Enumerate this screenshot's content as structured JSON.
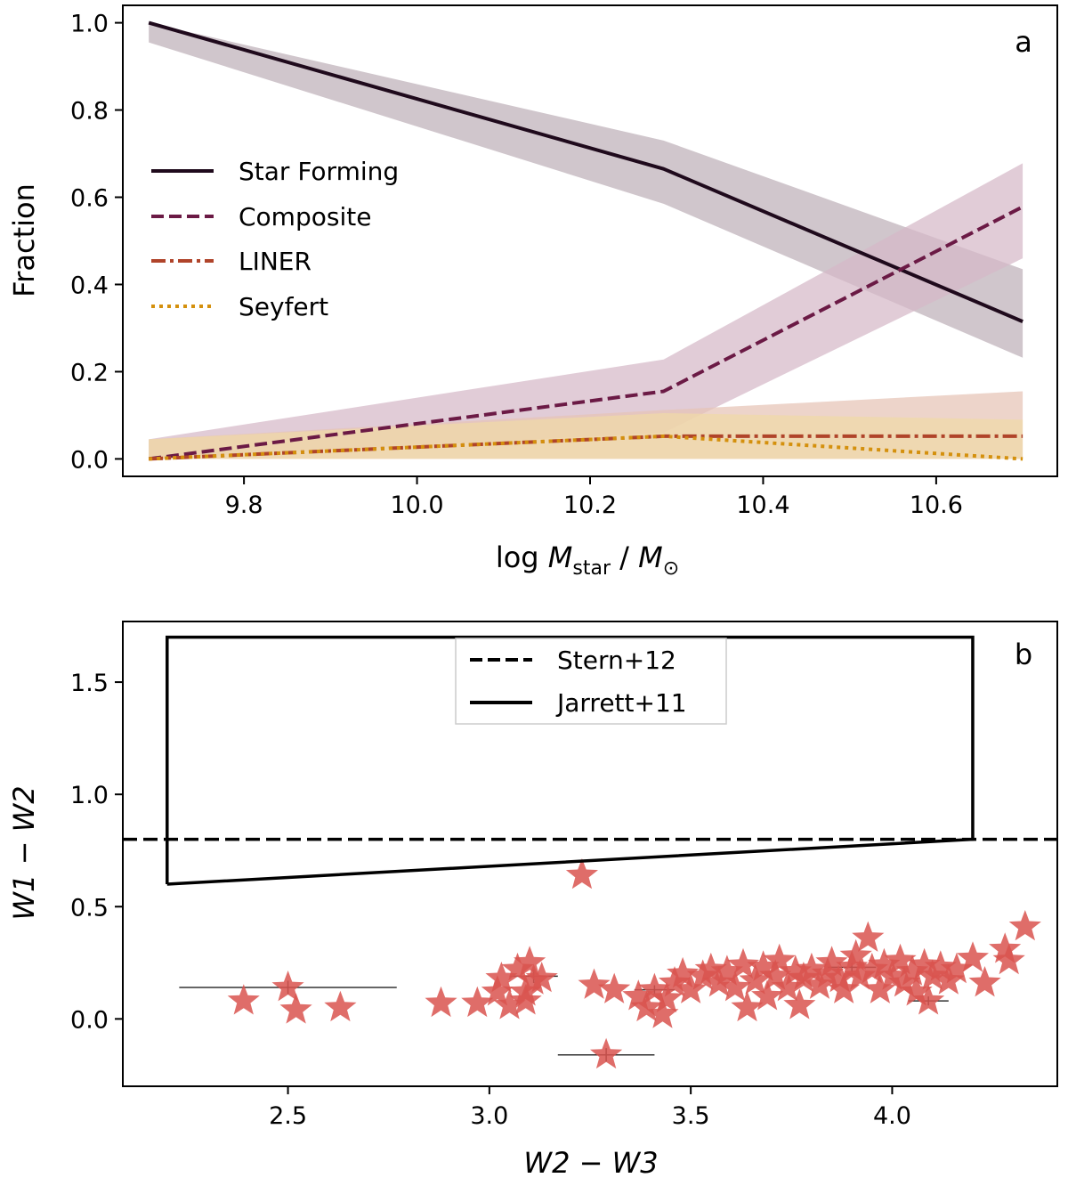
{
  "chart_data": [
    {
      "type": "line",
      "panel_letter": "a",
      "xlabel": "log M_star / M_⊙",
      "xlabel_parts": {
        "prefix": "log ",
        "M": "M",
        "sub": "star",
        "slash": " / ",
        "M2": "M",
        "sun": "⊙"
      },
      "ylabel": "Fraction",
      "xlim": [
        9.66,
        10.74
      ],
      "ylim": [
        -0.04,
        1.04
      ],
      "xticks": [
        9.8,
        10.0,
        10.2,
        10.4,
        10.6
      ],
      "xtick_labels": [
        "9.8",
        "10.0",
        "10.2",
        "10.4",
        "10.6"
      ],
      "yticks": [
        0.0,
        0.2,
        0.4,
        0.6,
        0.8,
        1.0
      ],
      "ytick_labels": [
        "0.0",
        "0.2",
        "0.4",
        "0.6",
        "0.8",
        "1.0"
      ],
      "legend_position": "center-left",
      "x": [
        9.69,
        10.285,
        10.7
      ],
      "series": [
        {
          "name": "Star Forming",
          "style": "solid",
          "color": "#1f0a1c",
          "band_color": "#beb0b9",
          "values": [
            1.0,
            0.665,
            0.315
          ],
          "lower": [
            0.955,
            0.585,
            0.232
          ],
          "upper": [
            1.0,
            0.73,
            0.435
          ]
        },
        {
          "name": "Composite",
          "style": "dashed",
          "color": "#6b1a45",
          "band_color": "#d6b8c8",
          "values": [
            0.0,
            0.155,
            0.578
          ],
          "lower": [
            0.0,
            0.06,
            0.46
          ],
          "upper": [
            0.045,
            0.228,
            0.678
          ]
        },
        {
          "name": "LINER",
          "style": "dashdot",
          "color": "#b0442a",
          "band_color": "#e6c3b6",
          "values": [
            0.0,
            0.052,
            0.052
          ],
          "lower": [
            0.0,
            0.0,
            0.0
          ],
          "upper": [
            0.045,
            0.112,
            0.155
          ]
        },
        {
          "name": "Seyfert",
          "style": "dotted",
          "color": "#d4900d",
          "band_color": "#f0d9a8",
          "values": [
            0.0,
            0.052,
            0.0
          ],
          "lower": [
            0.0,
            0.0,
            0.0
          ],
          "upper": [
            0.045,
            0.105,
            0.09
          ]
        }
      ]
    },
    {
      "type": "scatter",
      "panel_letter": "b",
      "xlabel": "W2 − W3",
      "ylabel": "W1 − W2",
      "xlim": [
        2.09,
        4.41
      ],
      "ylim": [
        -0.3,
        1.77
      ],
      "xticks": [
        2.5,
        3.0,
        3.5,
        4.0
      ],
      "xtick_labels": [
        "2.5",
        "3.0",
        "3.5",
        "4.0"
      ],
      "yticks": [
        0.0,
        0.5,
        1.0,
        1.5
      ],
      "ytick_labels": [
        "0.0",
        "0.5",
        "1.0",
        "1.5"
      ],
      "legend_position": "top-center",
      "legend": [
        {
          "name": "Stern+12",
          "style": "dashed"
        },
        {
          "name": "Jarrett+11",
          "style": "solid"
        }
      ],
      "stern_line_y": 0.8,
      "jarrett_polygon": [
        [
          2.2,
          0.6
        ],
        [
          2.2,
          1.7
        ],
        [
          4.2,
          1.7
        ],
        [
          4.2,
          0.8
        ],
        [
          2.2,
          0.6
        ]
      ],
      "marker_color": "#d9534f",
      "points": [
        [
          2.39,
          0.08
        ],
        [
          2.5,
          0.14
        ],
        [
          2.52,
          0.04
        ],
        [
          2.63,
          0.05
        ],
        [
          2.88,
          0.07
        ],
        [
          2.97,
          0.07
        ],
        [
          3.02,
          0.12
        ],
        [
          3.03,
          0.18
        ],
        [
          3.05,
          0.06
        ],
        [
          3.07,
          0.22
        ],
        [
          3.09,
          0.12
        ],
        [
          3.1,
          0.25
        ],
        [
          3.11,
          0.17
        ],
        [
          3.13,
          0.18
        ],
        [
          3.09,
          0.08
        ],
        [
          3.23,
          0.64
        ],
        [
          3.26,
          0.15
        ],
        [
          3.29,
          -0.16
        ],
        [
          3.31,
          0.13
        ],
        [
          3.37,
          0.1
        ],
        [
          3.39,
          0.05
        ],
        [
          3.41,
          0.13
        ],
        [
          3.43,
          0.02
        ],
        [
          3.44,
          0.09
        ],
        [
          3.46,
          0.16
        ],
        [
          3.48,
          0.2
        ],
        [
          3.5,
          0.13
        ],
        [
          3.53,
          0.19
        ],
        [
          3.55,
          0.22
        ],
        [
          3.57,
          0.16
        ],
        [
          3.59,
          0.21
        ],
        [
          3.61,
          0.14
        ],
        [
          3.63,
          0.24
        ],
        [
          3.64,
          0.05
        ],
        [
          3.66,
          0.17
        ],
        [
          3.68,
          0.23
        ],
        [
          3.69,
          0.1
        ],
        [
          3.71,
          0.19
        ],
        [
          3.72,
          0.26
        ],
        [
          3.74,
          0.14
        ],
        [
          3.76,
          0.21
        ],
        [
          3.77,
          0.06
        ],
        [
          3.78,
          0.18
        ],
        [
          3.8,
          0.22
        ],
        [
          3.82,
          0.15
        ],
        [
          3.84,
          0.2
        ],
        [
          3.85,
          0.25
        ],
        [
          3.87,
          0.18
        ],
        [
          3.88,
          0.13
        ],
        [
          3.9,
          0.23
        ],
        [
          3.91,
          0.28
        ],
        [
          3.92,
          0.19
        ],
        [
          3.94,
          0.36
        ],
        [
          3.95,
          0.22
        ],
        [
          3.97,
          0.13
        ],
        [
          3.98,
          0.24
        ],
        [
          4.0,
          0.19
        ],
        [
          4.02,
          0.26
        ],
        [
          4.03,
          0.16
        ],
        [
          4.05,
          0.21
        ],
        [
          4.06,
          0.12
        ],
        [
          4.08,
          0.24
        ],
        [
          4.09,
          0.08
        ],
        [
          4.1,
          0.19
        ],
        [
          4.12,
          0.23
        ],
        [
          4.14,
          0.17
        ],
        [
          4.16,
          0.22
        ],
        [
          4.2,
          0.27
        ],
        [
          4.23,
          0.16
        ],
        [
          4.28,
          0.31
        ],
        [
          4.29,
          0.26
        ],
        [
          4.33,
          0.41
        ]
      ],
      "error_bars": [
        {
          "x": 2.5,
          "y": 0.14,
          "xerr": 0.27,
          "yerr": 0.03
        },
        {
          "x": 3.29,
          "y": -0.16,
          "xerr": 0.12,
          "yerr": 0.03
        },
        {
          "x": 3.11,
          "y": 0.19,
          "xerr": 0.06,
          "yerr": 0.03
        },
        {
          "x": 3.41,
          "y": 0.13,
          "xerr": 0.05,
          "yerr": 0.02
        },
        {
          "x": 4.09,
          "y": 0.08,
          "xerr": 0.05,
          "yerr": 0.02
        },
        {
          "x": 3.9,
          "y": 0.23,
          "xerr": 0.06,
          "yerr": 0.02
        }
      ]
    }
  ]
}
